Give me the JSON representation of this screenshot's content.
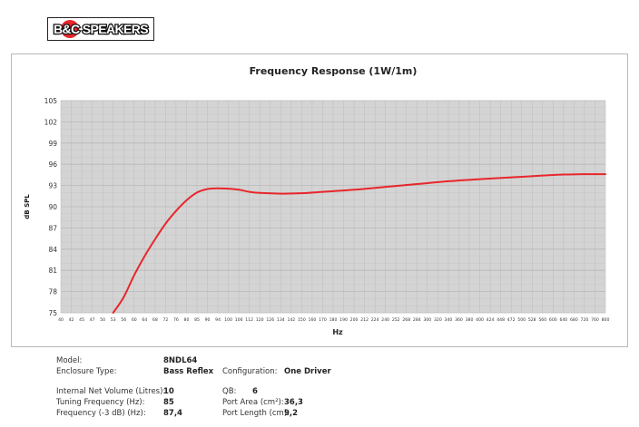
{
  "logo": {
    "text": "B&C SPEAKERS"
  },
  "chart_data": {
    "type": "line",
    "title": "Frequency Response (1W/1m)",
    "xlabel": "Hz",
    "ylabel": "dB SPL",
    "ylim": [
      75,
      105
    ],
    "yticks": [
      75,
      78,
      81,
      84,
      87,
      90,
      93,
      96,
      99,
      102,
      105
    ],
    "xtick_labels": [
      "40",
      "42",
      "45",
      "47",
      "50",
      "53",
      "56",
      "60",
      "64",
      "68",
      "72",
      "76",
      "80",
      "85",
      "90",
      "94",
      "100",
      "106",
      "112",
      "120",
      "126",
      "134",
      "142",
      "150",
      "160",
      "170",
      "180",
      "190",
      "200",
      "212",
      "224",
      "240",
      "252",
      "268",
      "284",
      "300",
      "320",
      "340",
      "360",
      "380",
      "400",
      "424",
      "448",
      "472",
      "500",
      "528",
      "560",
      "600",
      "640",
      "680",
      "720",
      "760",
      "800"
    ],
    "grid": true,
    "line_color": "#e8262b",
    "series": [
      {
        "x": [
          53,
          56,
          60,
          64,
          68,
          72,
          76,
          80,
          85,
          90,
          94,
          100,
          106,
          112,
          120,
          134,
          150,
          170,
          200,
          240,
          284,
          340,
          400,
          472,
          560,
          640,
          720,
          800
        ],
        "values": [
          75,
          77.2,
          80.3,
          83.0,
          85.4,
          87.6,
          89.4,
          90.9,
          92.0,
          92.5,
          92.6,
          92.55,
          92.4,
          92.1,
          91.95,
          91.85,
          91.9,
          92.1,
          92.4,
          92.8,
          93.2,
          93.6,
          93.9,
          94.15,
          94.4,
          94.55,
          94.6,
          94.6
        ]
      }
    ]
  },
  "specs": {
    "model_label": "Model:",
    "model_value": "8NDL64",
    "enclosure_label": "Enclosure Type:",
    "enclosure_value": "Bass Reflex",
    "configuration_label": "Configuration:",
    "configuration_value": "One Driver",
    "volume_label": "Internal Net Volume (Litres):",
    "volume_value": "10",
    "qb_label": "QB:",
    "qb_value": "6",
    "tuning_label": "Tuning Frequency (Hz):",
    "tuning_value": "85",
    "port_area_label": "Port Area (cm²):",
    "port_area_value": "36,3",
    "freq3db_label": "Frequency (-3 dB) (Hz):",
    "freq3db_value": "87,4",
    "port_length_label": "Port Length (cm):",
    "port_length_value": "9,2"
  }
}
